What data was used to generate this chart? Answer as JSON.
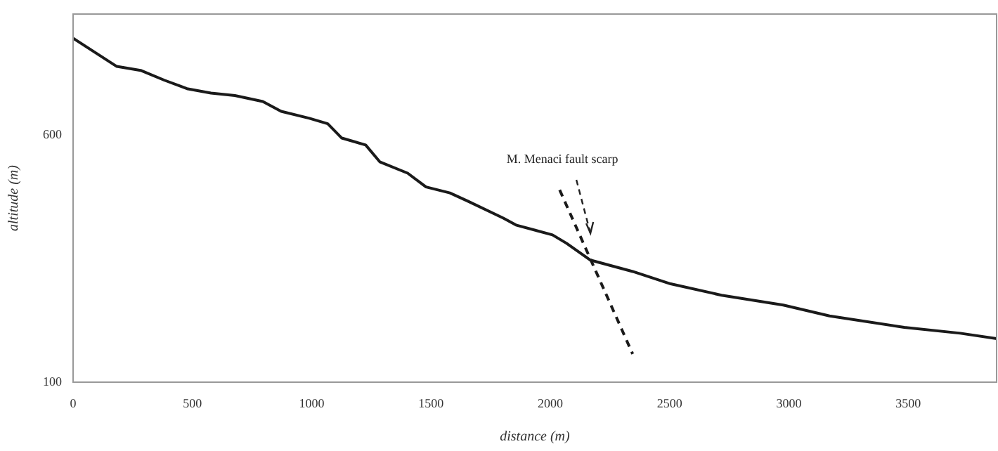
{
  "chart_data": {
    "type": "line",
    "xlabel": "distance (m)",
    "ylabel": "altitude (m)",
    "xlim": [
      0,
      3870
    ],
    "ylim": [
      100,
      845
    ],
    "xticks": [
      0,
      500,
      1000,
      1500,
      2000,
      2500,
      3000,
      3500
    ],
    "yticks": [
      100,
      600
    ],
    "grid": false,
    "legend": false,
    "marker": "none",
    "series": [
      {
        "color": "#1a1a1a",
        "line_style": "solid",
        "x": [
          0,
          183,
          283,
          383,
          477,
          578,
          678,
          795,
          872,
          990,
          1067,
          1126,
          1226,
          1285,
          1402,
          1479,
          1579,
          1656,
          1803,
          1856,
          2009,
          2068,
          2168,
          2345,
          2504,
          2717,
          2976,
          3170,
          3483,
          3718,
          3870
        ],
        "values": [
          796,
          739,
          731,
          711,
          694,
          685,
          680,
          668,
          648,
          634,
          623,
          594,
          580,
          546,
          523,
          495,
          483,
          466,
          432,
          418,
          398,
          381,
          347,
          324,
          299,
          276,
          256,
          234,
          211,
          199,
          188
        ]
      },
      {
        "color": "#1a1a1a",
        "line_style": "dashed",
        "x": [
          2039,
          2345
        ],
        "values": [
          489,
          157
        ]
      }
    ],
    "annotations": [
      {
        "text": "M. Menaci fault scarp",
        "x": 2168,
        "y": 390
      }
    ]
  }
}
